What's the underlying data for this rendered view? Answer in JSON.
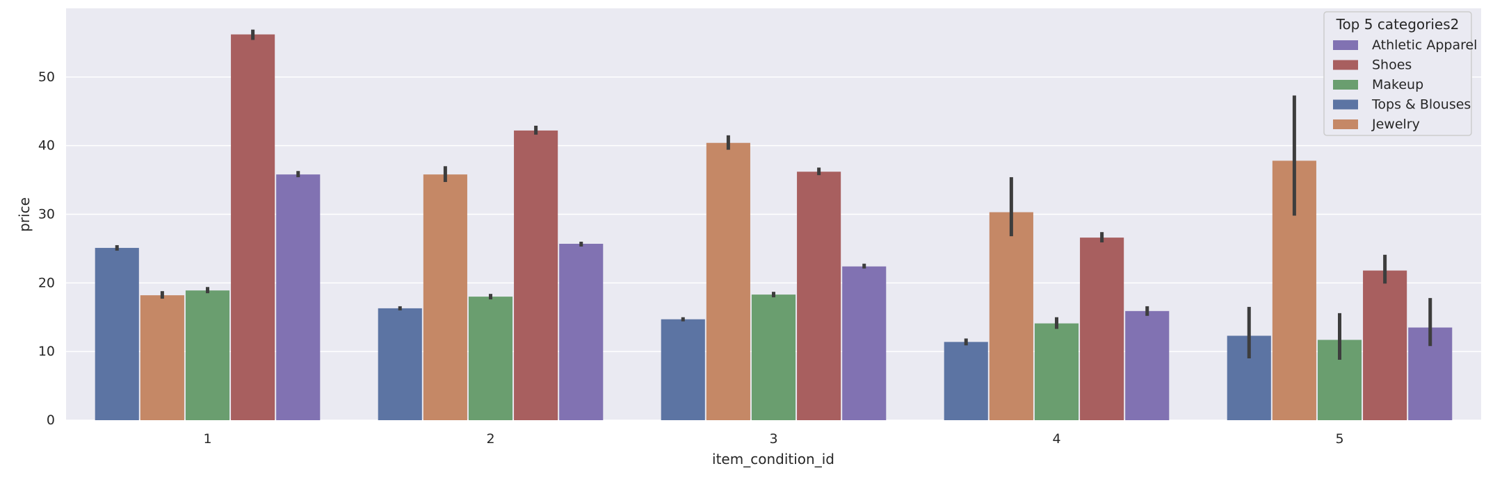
{
  "chart_data": {
    "type": "bar",
    "title": "",
    "xlabel": "item_condition_id",
    "ylabel": "price",
    "categories": [
      "1",
      "2",
      "3",
      "4",
      "5"
    ],
    "ylim": [
      0,
      60
    ],
    "yticks": [
      0,
      10,
      20,
      30,
      40,
      50
    ],
    "grid": true,
    "legend": {
      "title": "Top 5 categories2",
      "placement": "top-right",
      "entries": [
        {
          "name": "Athletic Apparel",
          "color": "#8172b2"
        },
        {
          "name": "Shoes",
          "color": "#a85f5f"
        },
        {
          "name": "Makeup",
          "color": "#6a9e6f"
        },
        {
          "name": "Tops & Blouses",
          "color": "#5c74a3"
        },
        {
          "name": "Jewelry",
          "color": "#c58866"
        }
      ]
    },
    "series": [
      {
        "name": "Tops & Blouses",
        "color": "#5c74a3",
        "values": [
          25.1,
          16.3,
          14.7,
          11.4,
          12.3
        ],
        "err_low": [
          24.7,
          16.0,
          14.4,
          10.9,
          9.0
        ],
        "err_high": [
          25.5,
          16.6,
          15.0,
          11.9,
          16.5
        ]
      },
      {
        "name": "Jewelry",
        "color": "#c58866",
        "values": [
          18.2,
          35.8,
          40.4,
          30.3,
          37.8
        ],
        "err_low": [
          17.7,
          34.7,
          39.4,
          26.8,
          29.8
        ],
        "err_high": [
          18.8,
          37.0,
          41.5,
          35.4,
          47.3
        ]
      },
      {
        "name": "Makeup",
        "color": "#6a9e6f",
        "values": [
          18.9,
          18.0,
          18.3,
          14.1,
          11.7
        ],
        "err_low": [
          18.5,
          17.6,
          17.9,
          13.3,
          8.8
        ],
        "err_high": [
          19.4,
          18.4,
          18.7,
          15.0,
          15.6
        ]
      },
      {
        "name": "Shoes",
        "color": "#a85f5f",
        "values": [
          56.2,
          42.2,
          36.2,
          26.6,
          21.8
        ],
        "err_low": [
          55.4,
          41.6,
          35.7,
          25.9,
          19.9
        ],
        "err_high": [
          56.9,
          42.9,
          36.8,
          27.4,
          24.1
        ]
      },
      {
        "name": "Athletic Apparel",
        "color": "#8172b2",
        "values": [
          35.8,
          25.7,
          22.4,
          15.9,
          13.5
        ],
        "err_low": [
          35.4,
          25.3,
          22.1,
          15.2,
          10.8
        ],
        "err_high": [
          36.3,
          26.0,
          22.8,
          16.6,
          17.8
        ]
      }
    ]
  }
}
